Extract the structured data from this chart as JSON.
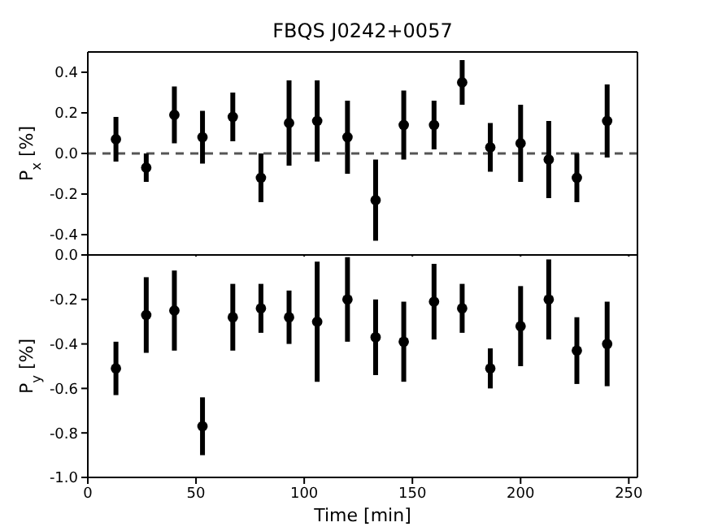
{
  "chart_data": [
    {
      "type": "scatter",
      "title": "FBQS J0242+0057",
      "ylabel": "P$_{x}$ [%]",
      "marker": "circle",
      "color": "#000000",
      "tick_labels": "y",
      "x": [
        13,
        27,
        40,
        53,
        67,
        80,
        93,
        106,
        120,
        133,
        146,
        160,
        173,
        186,
        200,
        213,
        226,
        240
      ],
      "values": [
        0.07,
        -0.07,
        0.19,
        0.08,
        0.18,
        -0.12,
        0.15,
        0.16,
        0.08,
        -0.23,
        0.14,
        0.14,
        0.35,
        0.03,
        0.05,
        -0.03,
        -0.12,
        0.16
      ],
      "errors": [
        0.11,
        0.07,
        0.14,
        0.13,
        0.12,
        0.12,
        0.21,
        0.2,
        0.18,
        0.2,
        0.17,
        0.12,
        0.11,
        0.12,
        0.19,
        0.19,
        0.12,
        0.18
      ],
      "xlim": [
        0,
        254
      ],
      "xticks": [
        0,
        50,
        100,
        150,
        200,
        250
      ],
      "ylim": [
        -0.5,
        0.5
      ],
      "yticks": [
        {
          "value": -0.4,
          "label": "-0.4"
        },
        {
          "value": -0.2,
          "label": "-0.2"
        },
        {
          "value": 0,
          "label": "0.0"
        },
        {
          "value": 0.2,
          "label": "0.2"
        },
        {
          "value": 0.4,
          "label": "0.4"
        }
      ],
      "ref_lines": [
        {
          "axis": "y",
          "value": 0,
          "color": "#555555",
          "line_style": "dashed"
        }
      ]
    },
    {
      "type": "scatter",
      "xlabel": "Time [min]",
      "ylabel": "P$_{y}$ [%]",
      "marker": "circle",
      "color": "#000000",
      "x": [
        13,
        27,
        40,
        53,
        67,
        80,
        93,
        106,
        120,
        133,
        146,
        160,
        173,
        186,
        200,
        213,
        226,
        240
      ],
      "values": [
        -0.51,
        -0.27,
        -0.25,
        -0.77,
        -0.28,
        -0.24,
        -0.28,
        -0.3,
        -0.2,
        -0.37,
        -0.39,
        -0.21,
        -0.24,
        -0.51,
        -0.32,
        -0.2,
        -0.43,
        -0.4
      ],
      "errors": [
        0.12,
        0.17,
        0.18,
        0.13,
        0.15,
        0.11,
        0.12,
        0.27,
        0.19,
        0.17,
        0.18,
        0.17,
        0.11,
        0.09,
        0.18,
        0.18,
        0.15,
        0.19
      ],
      "xlim": [
        0,
        254
      ],
      "xticks": [
        0,
        50,
        100,
        150,
        200,
        250
      ],
      "ylim": [
        -1.0,
        0.0
      ],
      "yticks": [
        {
          "value": -1.0,
          "label": "-1.0"
        },
        {
          "value": -0.8,
          "label": "-0.8"
        },
        {
          "value": -0.6,
          "label": "-0.6"
        },
        {
          "value": -0.4,
          "label": "-0.4"
        },
        {
          "value": -0.2,
          "label": "-0.2"
        },
        {
          "value": 0,
          "label": "0.0"
        }
      ]
    }
  ]
}
